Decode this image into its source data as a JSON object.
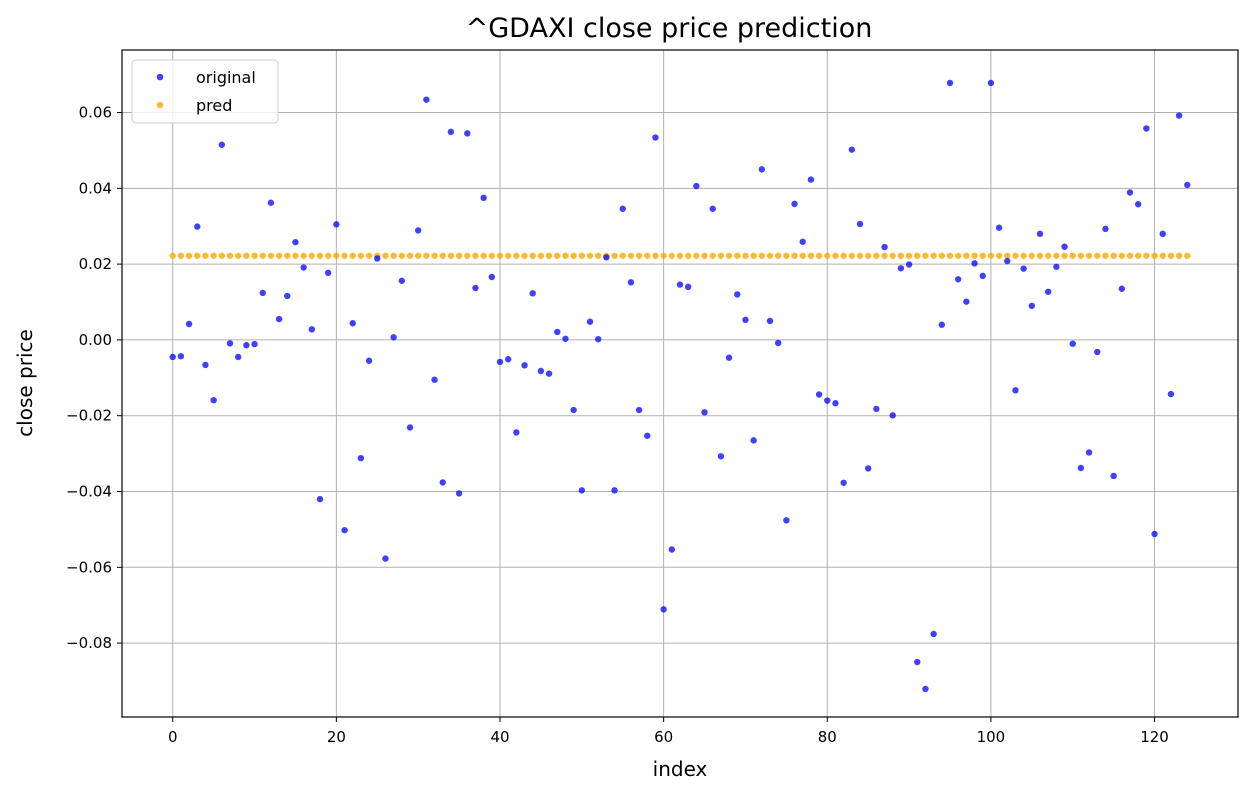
{
  "chart_data": {
    "type": "scatter",
    "title": "^GDAXI close price prediction",
    "xlabel": "index",
    "ylabel": "close price",
    "xlim": [
      -6.2,
      130.2
    ],
    "ylim": [
      -0.0995,
      0.0765
    ],
    "xticks": [
      0,
      20,
      40,
      60,
      80,
      100,
      120
    ],
    "xtick_labels": [
      "0",
      "20",
      "40",
      "60",
      "80",
      "100",
      "120"
    ],
    "yticks": [
      -0.08,
      -0.06,
      -0.04,
      -0.02,
      0.0,
      0.02,
      0.04,
      0.06
    ],
    "ytick_labels": [
      "−0.08",
      "−0.06",
      "−0.04",
      "−0.02",
      "0.00",
      "0.02",
      "0.04",
      "0.06"
    ],
    "grid": true,
    "legend_position": "top-left",
    "series": [
      {
        "name": "original",
        "color": "#0000ff",
        "x": [
          0,
          1,
          2,
          3,
          4,
          5,
          6,
          7,
          8,
          9,
          10,
          11,
          12,
          13,
          14,
          15,
          16,
          17,
          18,
          19,
          20,
          21,
          22,
          23,
          24,
          25,
          26,
          27,
          28,
          29,
          30,
          31,
          32,
          33,
          34,
          35,
          36,
          37,
          38,
          39,
          40,
          41,
          42,
          43,
          44,
          45,
          46,
          47,
          48,
          49,
          50,
          51,
          52,
          53,
          54,
          55,
          56,
          57,
          58,
          59,
          60,
          61,
          62,
          63,
          64,
          65,
          66,
          67,
          68,
          69,
          70,
          71,
          72,
          73,
          74,
          75,
          76,
          77,
          78,
          79,
          80,
          81,
          82,
          83,
          84,
          85,
          86,
          87,
          88,
          89,
          90,
          91,
          92,
          93,
          94,
          95,
          96,
          97,
          98,
          99,
          100,
          101,
          102,
          103,
          104,
          105,
          106,
          107,
          108,
          109,
          110,
          111,
          112,
          113,
          114,
          115,
          116,
          117,
          118,
          119,
          120,
          121,
          122,
          123,
          124
        ],
        "y": [
          -0.0045,
          -0.0043,
          0.0042,
          0.0299,
          -0.0066,
          -0.0159,
          0.0515,
          -0.0009,
          -0.0045,
          -0.0014,
          -0.0011,
          0.0124,
          0.0362,
          0.0055,
          0.0116,
          0.0258,
          0.0191,
          0.0028,
          -0.042,
          0.0177,
          0.0305,
          -0.0502,
          0.0044,
          -0.0312,
          -0.0055,
          0.0215,
          -0.0577,
          0.0007,
          0.0156,
          -0.0231,
          0.0289,
          0.0634,
          -0.0105,
          -0.0376,
          0.0549,
          -0.0405,
          0.0545,
          0.0137,
          0.0375,
          0.0166,
          -0.0058,
          -0.0051,
          -0.0244,
          -0.0067,
          0.0123,
          -0.0082,
          -0.0089,
          0.0021,
          0.0003,
          -0.0185,
          -0.0397,
          0.0048,
          0.0002,
          0.0218,
          -0.0397,
          0.0346,
          0.0152,
          -0.0185,
          -0.0253,
          0.0534,
          -0.0711,
          -0.0553,
          0.0146,
          0.014,
          0.0406,
          -0.0191,
          0.0346,
          -0.0307,
          -0.0047,
          0.012,
          0.0053,
          -0.0265,
          0.045,
          0.005,
          -0.0008,
          -0.0476,
          0.0359,
          0.0259,
          0.0423,
          -0.0144,
          -0.016,
          -0.0167,
          -0.0377,
          0.0502,
          0.0306,
          -0.0339,
          -0.0182,
          0.0245,
          -0.0199,
          0.0189,
          0.0199,
          -0.085,
          -0.0921,
          -0.0776,
          0.004,
          0.0678,
          0.016,
          0.0101,
          0.0202,
          0.0169,
          0.0678,
          0.0296,
          0.0208,
          -0.0133,
          0.0188,
          0.009,
          0.028,
          0.0127,
          0.0193,
          0.0246,
          -0.001,
          -0.0338,
          -0.0297,
          -0.0032,
          0.0293,
          -0.0359,
          0.0135,
          0.0389,
          0.0358,
          0.0558,
          -0.0512,
          0.028,
          -0.0143,
          0.0592,
          0.0409
        ]
      },
      {
        "name": "pred",
        "color": "#ffa500",
        "x_start": 0,
        "x_end": 124,
        "constant_y": 0.0222
      }
    ]
  }
}
